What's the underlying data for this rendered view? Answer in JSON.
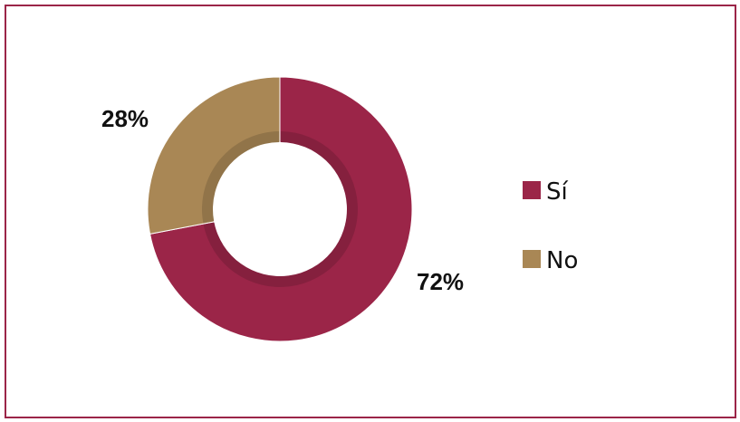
{
  "chart_data": {
    "type": "pie",
    "variant": "donut",
    "title": "",
    "categories": [
      "Sí",
      "No"
    ],
    "values": [
      72,
      28
    ],
    "unit": "%",
    "data_labels": [
      "72%",
      "28%"
    ],
    "colors": [
      "#9b2548",
      "#a98755"
    ],
    "legend": {
      "position": "right",
      "entries": [
        "Sí",
        "No"
      ]
    }
  },
  "frame": {
    "border_color": "#9b2548"
  }
}
